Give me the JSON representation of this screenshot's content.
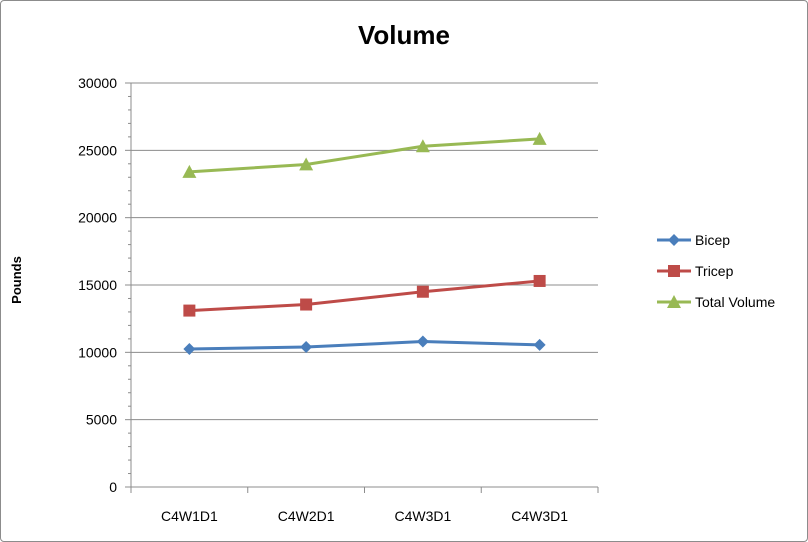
{
  "chart_data": {
    "type": "line",
    "title": "Volume",
    "xlabel": "",
    "ylabel": "Pounds",
    "categories": [
      "C4W1D1",
      "C4W2D1",
      "C4W3D1",
      "C4W3D1"
    ],
    "ylim": [
      0,
      30000
    ],
    "yticks": [
      0,
      5000,
      10000,
      15000,
      20000,
      25000,
      30000
    ],
    "grid": true,
    "legend_position": "right",
    "series": [
      {
        "name": "Bicep",
        "values": [
          10250,
          10400,
          10800,
          10550
        ],
        "color": "#4a7ebb",
        "marker": "diamond"
      },
      {
        "name": "Tricep",
        "values": [
          13100,
          13550,
          14500,
          15300
        ],
        "color": "#be4b48",
        "marker": "square"
      },
      {
        "name": "Total Volume",
        "values": [
          23400,
          23950,
          25300,
          25850
        ],
        "color": "#98b954",
        "marker": "triangle"
      }
    ]
  }
}
